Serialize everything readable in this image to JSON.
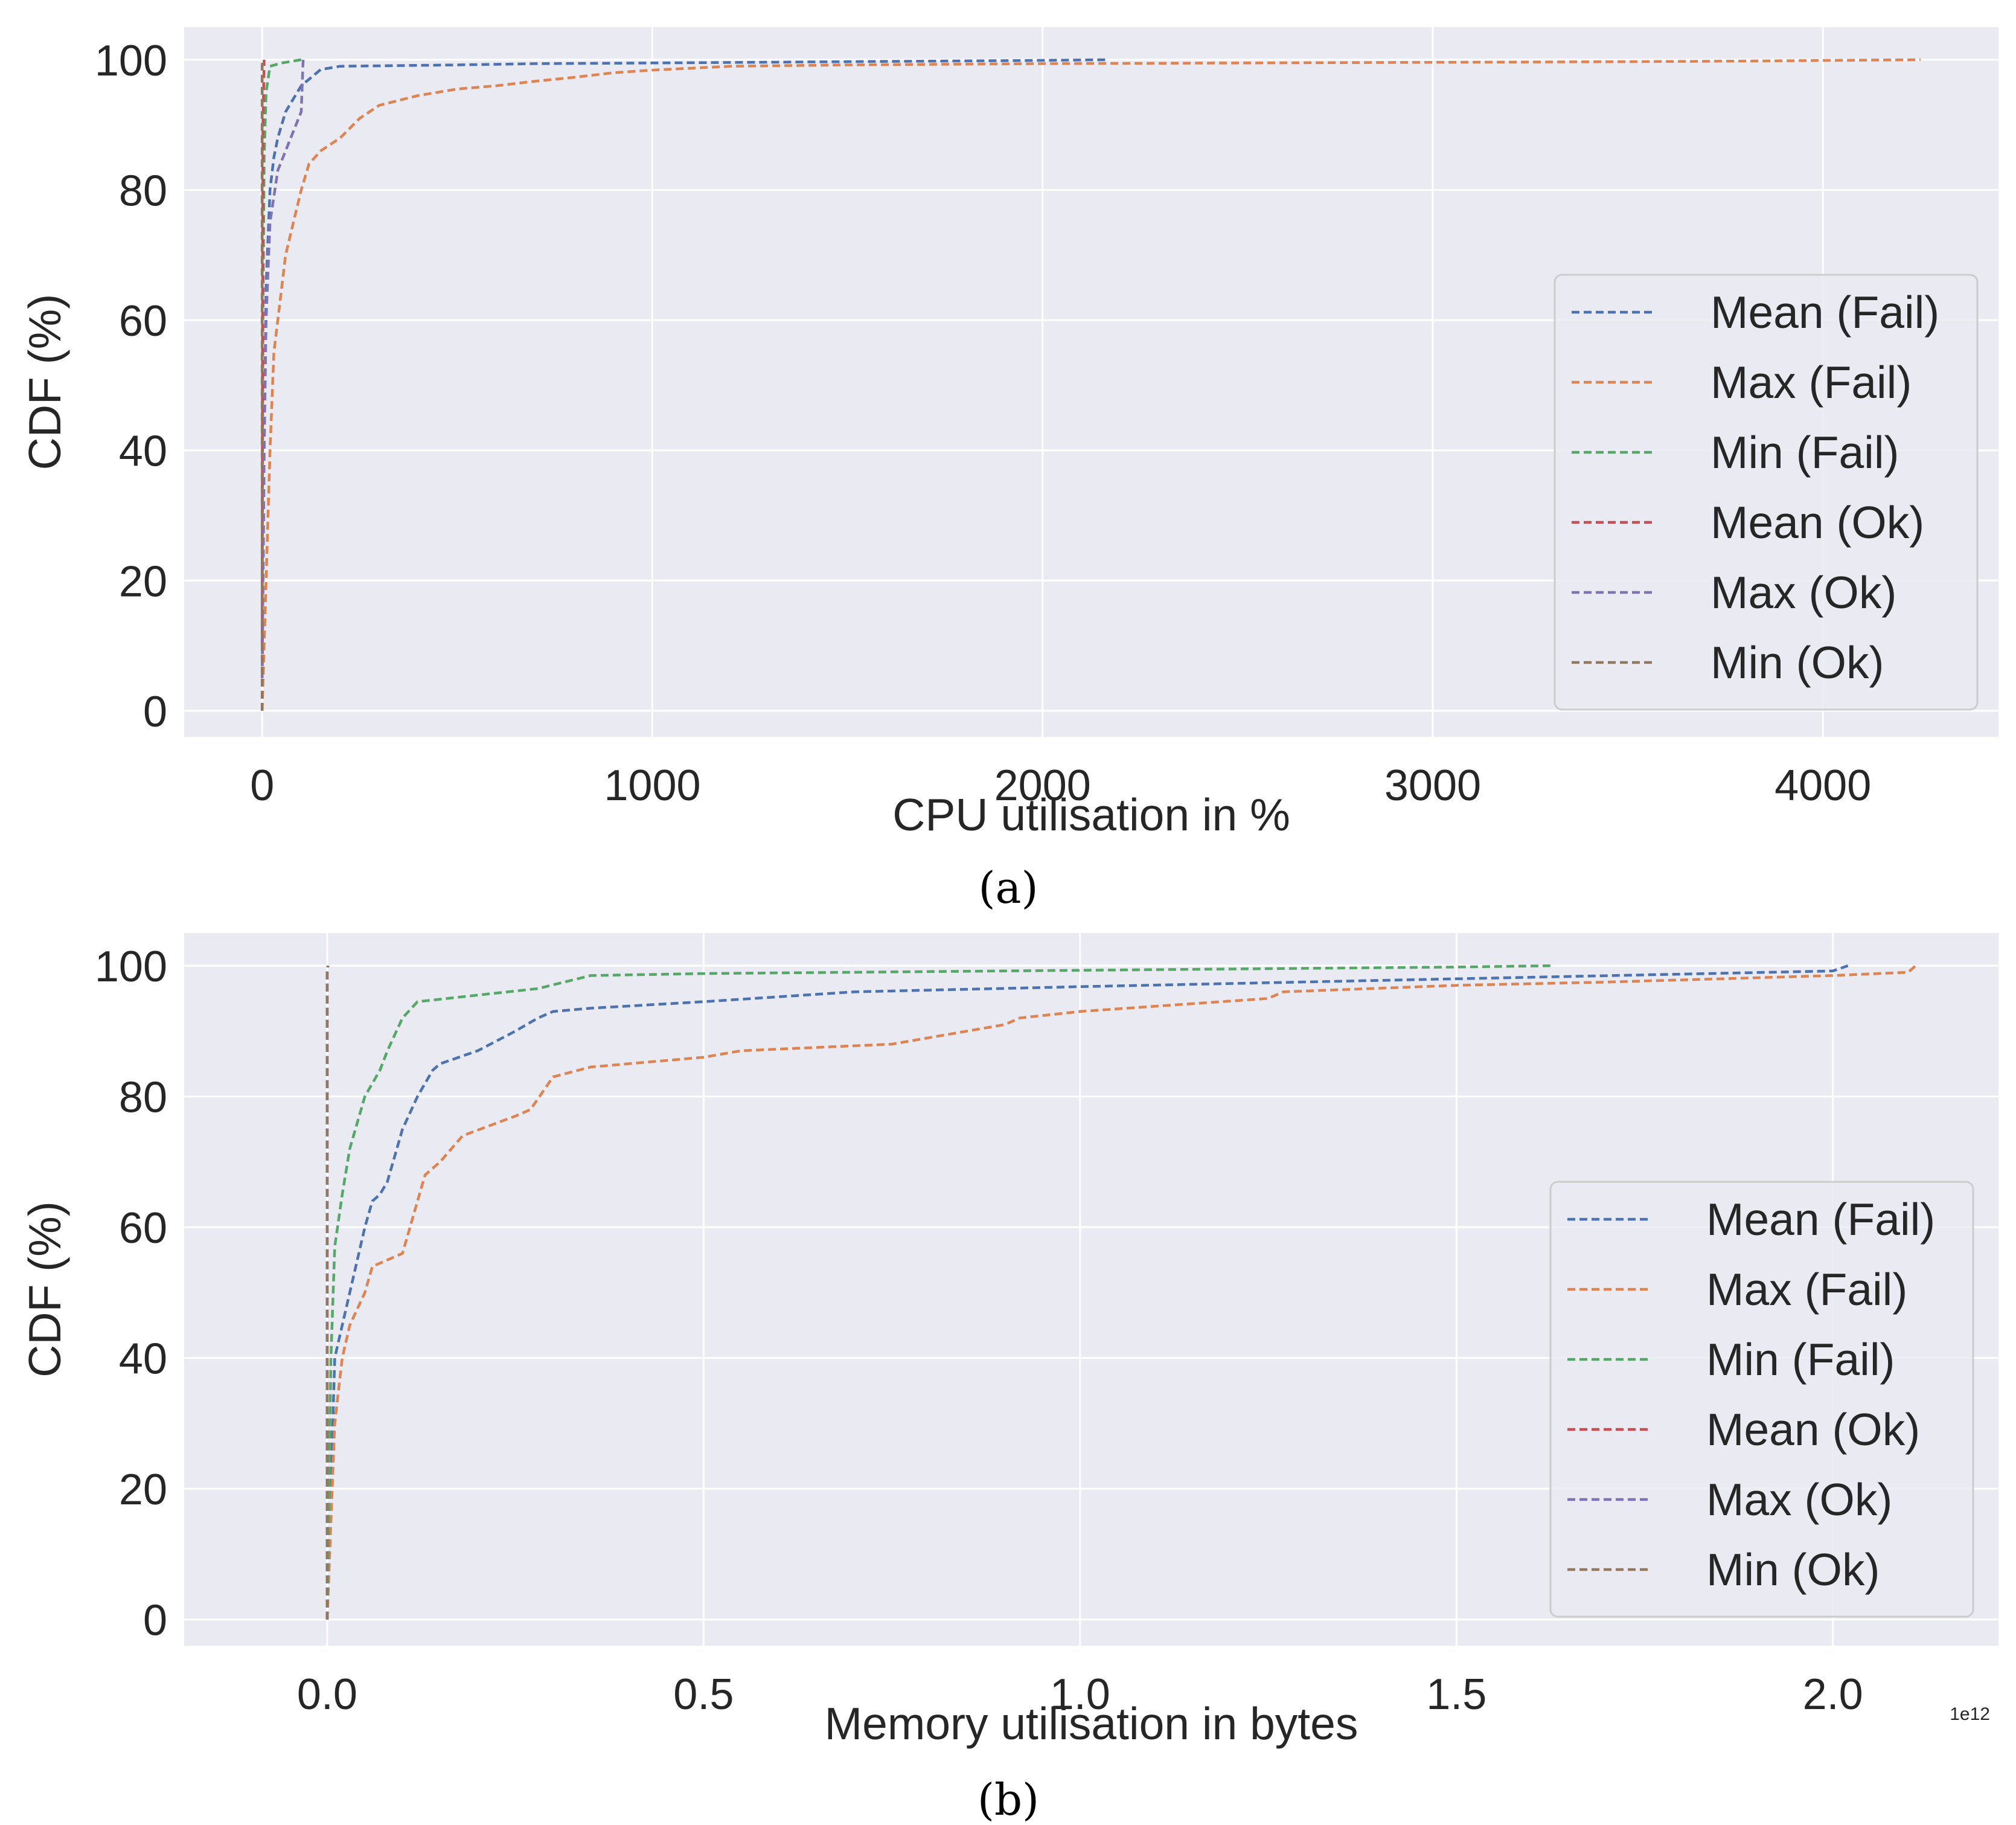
{
  "colors": {
    "plot_bg": "#eaeaf2",
    "grid": "#ffffff",
    "text": "#262626",
    "legend_bg": "#eaeaf2",
    "legend_border": "#cccccc"
  },
  "chart_data": [
    {
      "type": "line",
      "caption": "(a)",
      "xlabel": "CPU utilisation in %",
      "ylabel": "CDF (%)",
      "xlim": [
        -200,
        4450
      ],
      "ylim": [
        -4,
        105
      ],
      "xticks": [
        0,
        1000,
        2000,
        3000,
        4000
      ],
      "xtick_labels": [
        "0",
        "1000",
        "2000",
        "3000",
        "4000"
      ],
      "yticks": [
        0,
        20,
        40,
        60,
        80,
        100
      ],
      "ytick_labels": [
        "0",
        "20",
        "40",
        "60",
        "80",
        "100"
      ],
      "offset_label": "",
      "grid": true,
      "legend_position": "center-right",
      "line_style": "dashed",
      "series": [
        {
          "name": "Mean (Fail)",
          "color": "#4c72b0",
          "x": [
            0,
            5,
            10,
            20,
            30,
            40,
            60,
            80,
            100,
            150,
            200,
            500,
            700,
            1000,
            1500,
            2000,
            2170
          ],
          "y": [
            5,
            40,
            65,
            80,
            85,
            88,
            92,
            94,
            96,
            98.5,
            99,
            99.2,
            99.4,
            99.5,
            99.7,
            99.9,
            100
          ]
        },
        {
          "name": "Max (Fail)",
          "color": "#dd8452",
          "x": [
            0,
            10,
            20,
            30,
            50,
            60,
            80,
            100,
            120,
            150,
            200,
            250,
            300,
            400,
            500,
            600,
            700,
            800,
            900,
            1000,
            1200,
            1500,
            2000,
            2500,
            3000,
            3500,
            3800,
            4250
          ],
          "y": [
            0,
            20,
            40,
            55,
            65,
            70,
            75,
            80,
            84,
            86,
            88,
            91,
            93,
            94.5,
            95.5,
            96,
            96.7,
            97.3,
            98,
            98.4,
            99,
            99.2,
            99.4,
            99.5,
            99.6,
            99.7,
            99.8,
            100
          ]
        },
        {
          "name": "Min (Fail)",
          "color": "#55a868",
          "x": [
            0,
            2,
            5,
            10,
            20,
            50,
            100
          ],
          "y": [
            10,
            60,
            85,
            95,
            99,
            99.5,
            100
          ]
        },
        {
          "name": "Mean (Ok)",
          "color": "#c44e52",
          "x": [
            0,
            1,
            2,
            5
          ],
          "y": [
            10,
            60,
            90,
            100
          ]
        },
        {
          "name": "Max (Ok)",
          "color": "#8172b3",
          "x": [
            0,
            5,
            10,
            20,
            40,
            60,
            80,
            100,
            105
          ],
          "y": [
            5,
            40,
            60,
            75,
            83,
            86,
            89,
            92,
            100
          ]
        },
        {
          "name": "Min (Ok)",
          "color": "#937860",
          "x": [
            0,
            0,
            1
          ],
          "y": [
            0,
            99,
            100
          ]
        }
      ]
    },
    {
      "type": "line",
      "caption": "(b)",
      "xlabel": "Memory utilisation in bytes",
      "ylabel": "CDF (%)",
      "xlim": [
        -0.19,
        2.22
      ],
      "ylim": [
        -4,
        105
      ],
      "xticks": [
        0,
        0.5,
        1.0,
        1.5,
        2.0
      ],
      "xtick_labels": [
        "0.0",
        "0.5",
        "1.0",
        "1.5",
        "2.0"
      ],
      "yticks": [
        0,
        20,
        40,
        60,
        80,
        100
      ],
      "ytick_labels": [
        "0",
        "20",
        "40",
        "60",
        "80",
        "100"
      ],
      "offset_label": "1e12",
      "x_unit_scale": "1e12",
      "grid": true,
      "legend_position": "center-right",
      "line_style": "dashed",
      "series": [
        {
          "name": "Mean (Fail)",
          "color": "#4c72b0",
          "x": [
            0,
            0.005,
            0.01,
            0.02,
            0.03,
            0.04,
            0.05,
            0.06,
            0.07,
            0.08,
            0.1,
            0.12,
            0.14,
            0.15,
            0.2,
            0.25,
            0.28,
            0.3,
            0.35,
            0.5,
            0.7,
            1.0,
            1.5,
            2.0,
            2.02
          ],
          "y": [
            0,
            20,
            40,
            45,
            50,
            55,
            60,
            64,
            65,
            67,
            75,
            80,
            84,
            85,
            87,
            90,
            92,
            93,
            93.5,
            94.5,
            96,
            96.8,
            98,
            99.2,
            100
          ]
        },
        {
          "name": "Max (Fail)",
          "color": "#dd8452",
          "x": [
            0,
            0.005,
            0.01,
            0.02,
            0.03,
            0.05,
            0.06,
            0.08,
            0.1,
            0.11,
            0.12,
            0.13,
            0.15,
            0.18,
            0.25,
            0.27,
            0.3,
            0.35,
            0.5,
            0.55,
            0.75,
            0.9,
            0.92,
            1.0,
            1.25,
            1.27,
            1.5,
            1.7,
            2.0,
            2.1,
            2.11
          ],
          "y": [
            0,
            15,
            30,
            40,
            45,
            50,
            54,
            55,
            56,
            60,
            64,
            68,
            70,
            74,
            77,
            78,
            83,
            84.5,
            86,
            87,
            88,
            91,
            92,
            93,
            95,
            96,
            97,
            97.5,
            98.5,
            99,
            100
          ]
        },
        {
          "name": "Min (Fail)",
          "color": "#55a868",
          "x": [
            0,
            0.005,
            0.01,
            0.02,
            0.03,
            0.04,
            0.05,
            0.07,
            0.08,
            0.1,
            0.12,
            0.2,
            0.28,
            0.35,
            0.5,
            1.0,
            1.5,
            1.63
          ],
          "y": [
            0,
            40,
            57,
            65,
            72,
            76,
            80,
            84,
            87,
            92,
            94.5,
            95.5,
            96.5,
            98.5,
            98.8,
            99.3,
            99.8,
            100
          ]
        },
        {
          "name": "Mean (Ok)",
          "color": "#c44e52",
          "x": [
            0,
            0,
            0.001
          ],
          "y": [
            0,
            99,
            100
          ]
        },
        {
          "name": "Max (Ok)",
          "color": "#8172b3",
          "x": [
            0,
            0,
            0.001
          ],
          "y": [
            0,
            99,
            100
          ]
        },
        {
          "name": "Min (Ok)",
          "color": "#937860",
          "x": [
            0,
            0,
            0.001
          ],
          "y": [
            0,
            99,
            100
          ]
        }
      ]
    }
  ]
}
